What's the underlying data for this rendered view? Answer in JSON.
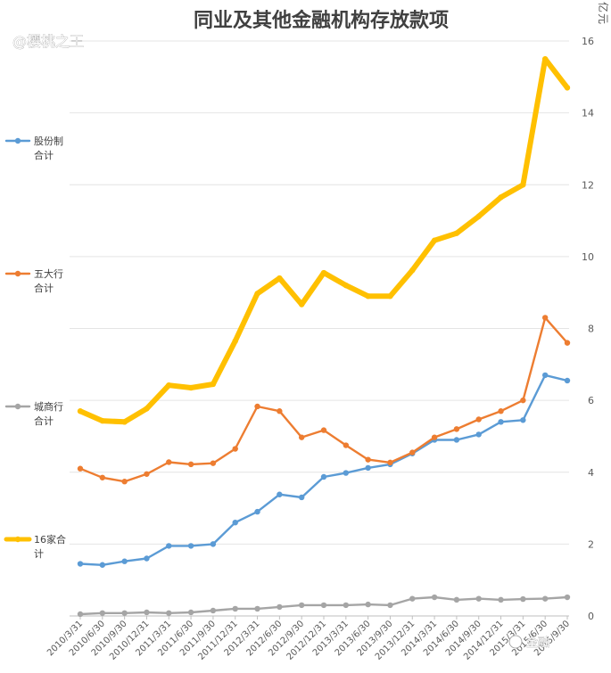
{
  "chart_data": {
    "type": "line",
    "title": "同业及其他金融机构存放款项",
    "unit_label": "亿元",
    "ylim": [
      0,
      16
    ],
    "yticks": [
      0,
      2,
      4,
      6,
      8,
      10,
      12,
      14,
      16
    ],
    "categories": [
      "2010/3/31",
      "2010/6/30",
      "2010/9/30",
      "2010/12/31",
      "2011/3/31",
      "2011/6/30",
      "2011/9/30",
      "2011/12/31",
      "2012/3/31",
      "2012/6/30",
      "2012/9/30",
      "2012/12/31",
      "2013/3/31",
      "2013/6/30",
      "2013/9/30",
      "2013/12/31",
      "2014/3/31",
      "2014/6/30",
      "2014/9/30",
      "2014/12/31",
      "2015/3/31",
      "2015/6/30",
      "2015/9/30"
    ],
    "series": [
      {
        "name": "股份制合计",
        "legend_lines": [
          "股份制",
          "合计"
        ],
        "color": "#5b9bd5",
        "width": "normal",
        "values": [
          1.45,
          1.42,
          1.52,
          1.6,
          1.95,
          1.95,
          2.0,
          2.6,
          2.9,
          3.38,
          3.3,
          3.87,
          3.98,
          4.12,
          4.22,
          4.52,
          4.9,
          4.9,
          5.05,
          5.4,
          5.45,
          6.7,
          6.55
        ]
      },
      {
        "name": "五大行合计",
        "legend_lines": [
          "五大行",
          "合计"
        ],
        "color": "#ed7d31",
        "width": "normal",
        "values": [
          4.1,
          3.85,
          3.74,
          3.95,
          4.28,
          4.22,
          4.25,
          4.65,
          5.83,
          5.7,
          4.97,
          5.17,
          4.75,
          4.35,
          4.27,
          4.55,
          4.97,
          5.2,
          5.47,
          5.7,
          6.0,
          8.3,
          7.6
        ]
      },
      {
        "name": "城商行合计",
        "legend_lines": [
          "城商行",
          "合计"
        ],
        "color": "#a5a5a5",
        "width": "normal",
        "values": [
          0.05,
          0.08,
          0.08,
          0.1,
          0.08,
          0.1,
          0.15,
          0.2,
          0.2,
          0.25,
          0.3,
          0.3,
          0.3,
          0.32,
          0.3,
          0.48,
          0.52,
          0.45,
          0.48,
          0.45,
          0.47,
          0.48,
          0.52
        ]
      },
      {
        "name": "16家合计",
        "legend_lines": [
          "16家合",
          "计"
        ],
        "color": "#ffc000",
        "width": "thick",
        "values": [
          5.7,
          5.43,
          5.4,
          5.77,
          6.42,
          6.35,
          6.45,
          7.65,
          8.97,
          9.4,
          8.67,
          9.55,
          9.2,
          8.9,
          8.9,
          9.62,
          10.45,
          10.65,
          11.12,
          11.65,
          12.0,
          15.5,
          14.7
        ]
      }
    ]
  },
  "watermarks": {
    "top_left": "@樱桃之王",
    "bottom_right": "金融"
  }
}
